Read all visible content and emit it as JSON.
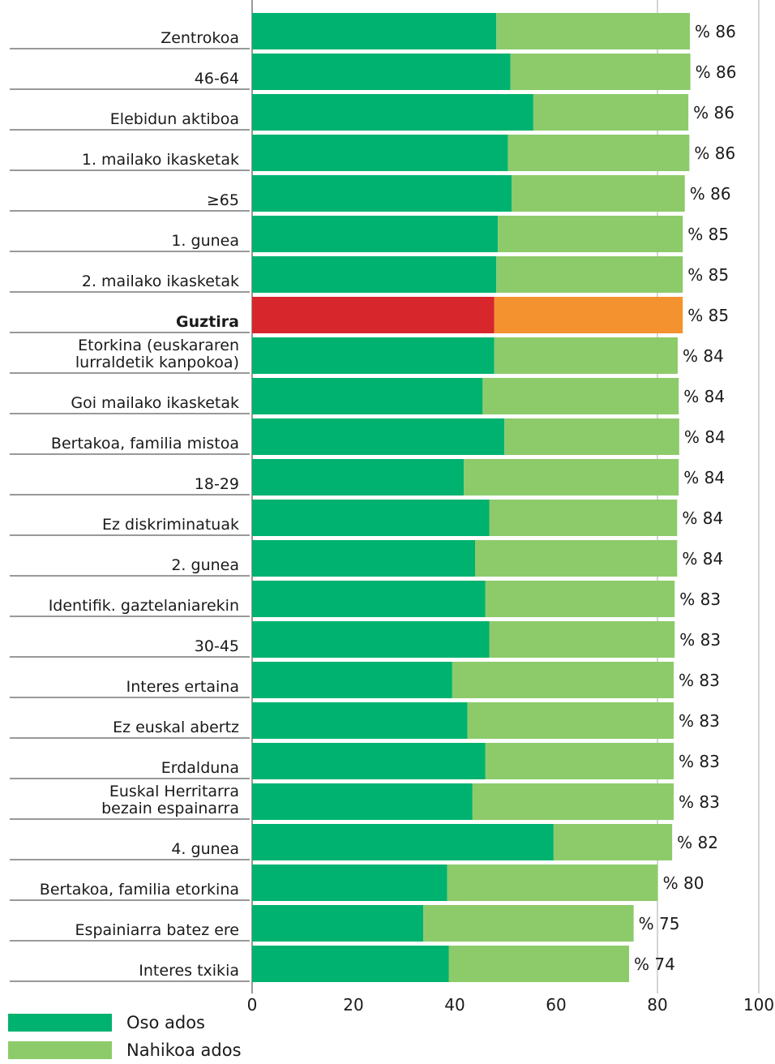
{
  "chart_data": {
    "type": "bar",
    "orientation": "horizontal",
    "stacked": true,
    "categories": [
      "Zentrokoa",
      "46-64",
      "Elebidun aktiboa",
      "1. mailako ikasketak",
      "≥65",
      "1. gunea",
      "2. mailako ikasketak",
      "Guztira",
      "Etorkina (euskararen\nlurraldetik kanpokoa)",
      "Goi mailako ikasketak",
      "Bertakoa, familia mistoa",
      "18-29",
      "Ez diskriminatuak",
      "2. gunea",
      "Identifik. gaztelaniarekin",
      "30-45",
      "Interes ertaina",
      "Ez euskal abertz",
      "Erdalduna",
      "Euskal Herritarra\nbezain espainarra",
      "4. gunea",
      "Bertakoa, familia etorkina",
      "Espainiarra batez ere",
      "Interes txikia"
    ],
    "highlight_category": "Guztira",
    "series": [
      {
        "name": "Oso ados",
        "color": "#00b26f",
        "highlight_color": "#d7262c",
        "values": [
          48.2,
          51.0,
          55.5,
          50.5,
          51.2,
          48.5,
          48.2,
          47.8,
          47.8,
          45.5,
          49.8,
          41.8,
          46.8,
          44.0,
          46.0,
          46.8,
          39.5,
          42.5,
          46.0,
          43.5,
          59.5,
          38.5,
          33.8,
          38.8
        ]
      },
      {
        "name": "Nahikoa ados",
        "color": "#8dcb6a",
        "highlight_color": "#f4922f",
        "values": [
          38.2,
          35.5,
          30.6,
          35.8,
          34.2,
          36.5,
          36.8,
          37.2,
          36.2,
          38.7,
          34.5,
          42.4,
          37.1,
          39.9,
          37.4,
          36.6,
          43.7,
          40.7,
          37.2,
          39.7,
          23.4,
          41.6,
          41.5,
          35.6
        ]
      }
    ],
    "totals": [
      "% 86",
      "% 86",
      "% 86",
      "% 86",
      "% 86",
      "% 85",
      "% 85",
      "% 85",
      "% 84",
      "% 84",
      "% 84",
      "% 84",
      "% 84",
      "% 84",
      "% 83",
      "% 83",
      "% 83",
      "% 83",
      "% 83",
      "% 83",
      "% 82",
      "% 80",
      "% 75",
      "% 74"
    ],
    "xlim": [
      0,
      100
    ],
    "xticks": [
      "0",
      "20",
      "40",
      "60",
      "80",
      "100"
    ],
    "grid": "vertical lines at 0, 80, 100",
    "legend": "bottom-left"
  }
}
